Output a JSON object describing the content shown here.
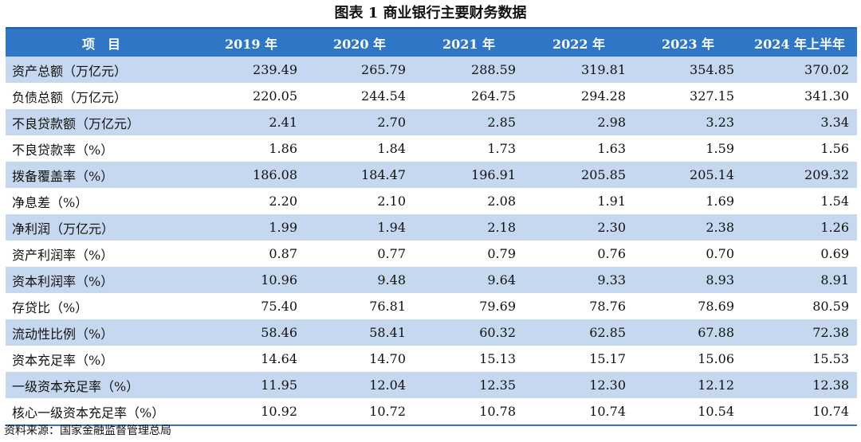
{
  "title": "图表 1 商业银行主要财务数据",
  "header": [
    "项　目",
    "2019 年",
    "2020 年",
    "2021 年",
    "2022 年",
    "2023 年",
    "2024 年上半年"
  ],
  "rows": [
    {
      "label": "资产总额（万亿元）",
      "values": [
        "239.49",
        "265.79",
        "288.59",
        "319.81",
        "354.85",
        "370.02"
      ]
    },
    {
      "label": "负债总额（万亿元）",
      "values": [
        "220.05",
        "244.54",
        "264.75",
        "294.28",
        "327.15",
        "341.30"
      ]
    },
    {
      "label": "不良贷款额（万亿元）",
      "values": [
        "2.41",
        "2.70",
        "2.85",
        "2.98",
        "3.23",
        "3.34"
      ]
    },
    {
      "label": "不良贷款率（%）",
      "values": [
        "1.86",
        "1.84",
        "1.73",
        "1.63",
        "1.59",
        "1.56"
      ]
    },
    {
      "label": "拨备覆盖率（%）",
      "values": [
        "186.08",
        "184.47",
        "196.91",
        "205.85",
        "205.14",
        "209.32"
      ]
    },
    {
      "label": "净息差（%）",
      "values": [
        "2.20",
        "2.10",
        "2.08",
        "1.91",
        "1.69",
        "1.54"
      ]
    },
    {
      "label": "净利润（万亿元）",
      "values": [
        "1.99",
        "1.94",
        "2.18",
        "2.30",
        "2.38",
        "1.26"
      ]
    },
    {
      "label": "资产利润率（%）",
      "values": [
        "0.87",
        "0.77",
        "0.79",
        "0.76",
        "0.70",
        "0.69"
      ]
    },
    {
      "label": "资本利润率（%）",
      "values": [
        "10.96",
        "9.48",
        "9.64",
        "9.33",
        "8.93",
        "8.91"
      ]
    },
    {
      "label": "存贷比（%）",
      "values": [
        "75.40",
        "76.81",
        "79.69",
        "78.76",
        "78.69",
        "80.59"
      ]
    },
    {
      "label": "流动性比例（%）",
      "values": [
        "58.46",
        "58.41",
        "60.32",
        "62.85",
        "67.88",
        "72.38"
      ]
    },
    {
      "label": "资本充足率（%）",
      "values": [
        "14.64",
        "14.70",
        "15.13",
        "15.17",
        "15.06",
        "15.53"
      ]
    },
    {
      "label": "一级资本充足率（%）",
      "values": [
        "11.95",
        "12.04",
        "12.35",
        "12.30",
        "12.12",
        "12.38"
      ]
    },
    {
      "label": "核心一级资本充足率（%）",
      "values": [
        "10.92",
        "10.72",
        "10.78",
        "10.74",
        "10.54",
        "10.74"
      ]
    }
  ],
  "source": "资料来源：国家金融监督管理总局",
  "colors": {
    "header_bg": "#2f77c6",
    "stripe": "#c6d8ef"
  }
}
